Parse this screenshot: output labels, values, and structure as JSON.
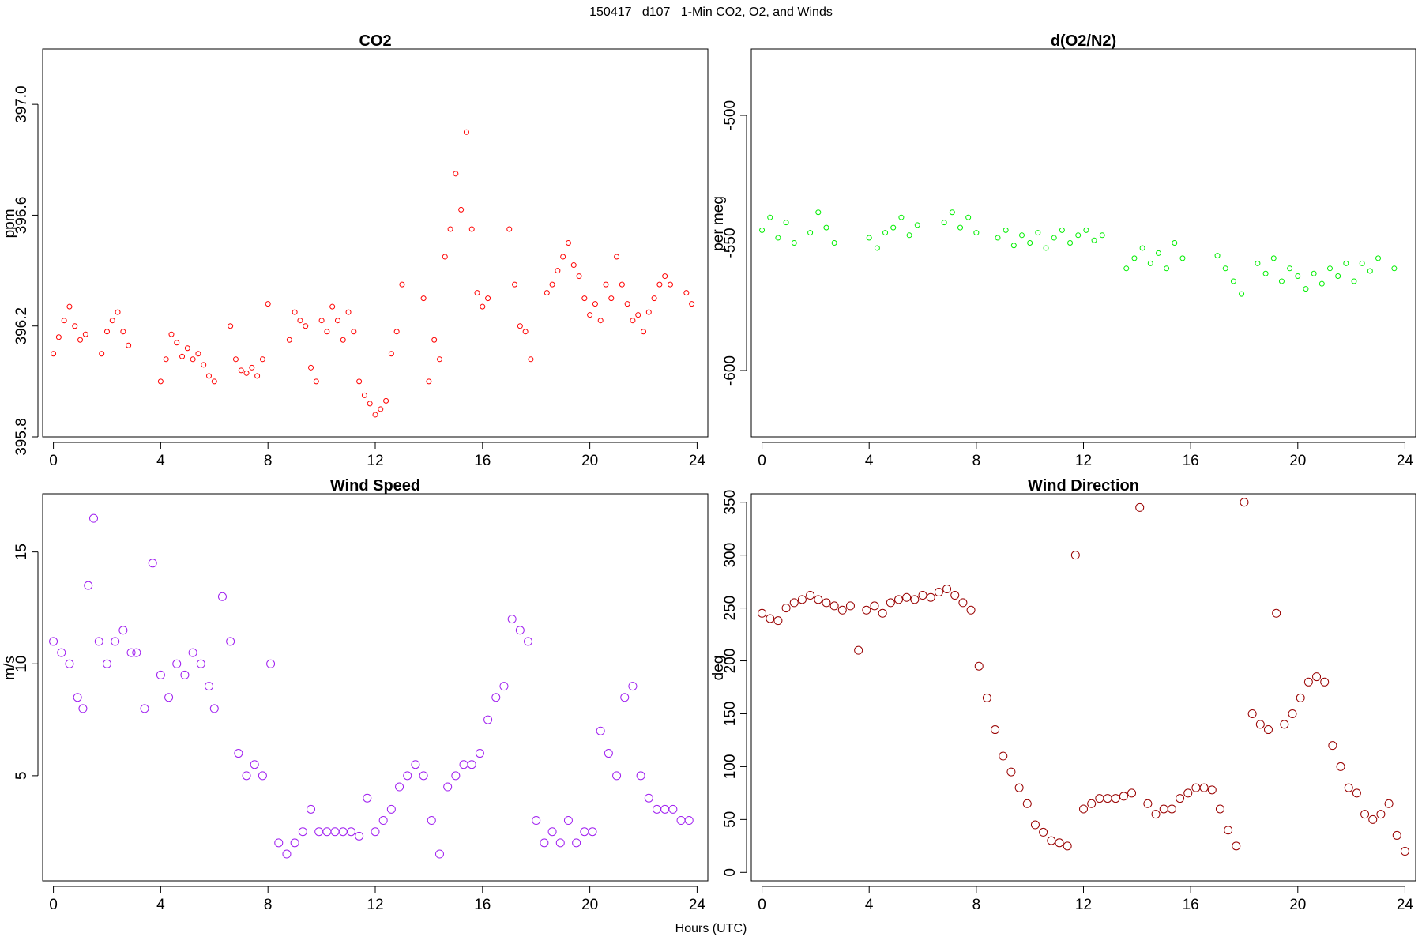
{
  "page": {
    "title": "150417   d107   1-Min CO2, O2, and Winds",
    "xlabel": "Hours (UTC)"
  },
  "chart_data": [
    {
      "type": "scatter",
      "title": "CO2",
      "ylabel": "ppm",
      "color": "#ff0000",
      "xlim": [
        -0.4,
        24.4
      ],
      "ylim": [
        395.8,
        397.2
      ],
      "xticks": [
        0,
        4,
        8,
        12,
        16,
        20,
        24
      ],
      "yticks": [
        395.8,
        396.2,
        396.6,
        397.0
      ],
      "ytick_labels": [
        "395.8",
        "396.2",
        "396.6",
        "397.0"
      ],
      "series": [
        {
          "x": [
            0.0,
            0.2,
            0.4,
            0.6,
            0.8,
            1.0,
            1.2,
            1.8,
            2.0,
            2.2,
            2.4,
            2.6,
            2.8,
            4.0,
            4.2,
            4.4,
            4.6,
            4.8,
            5.0,
            5.2,
            5.4,
            5.6,
            5.8,
            6.0,
            6.6,
            6.8,
            7.0,
            7.2,
            7.4,
            7.6,
            7.8,
            8.0,
            8.8,
            9.0,
            9.2,
            9.4,
            9.6,
            9.8,
            10.0,
            10.2,
            10.4,
            10.6,
            10.8,
            11.0,
            11.2,
            11.4,
            11.6,
            11.8,
            12.0,
            12.2,
            12.4,
            12.6,
            12.8,
            13.0,
            13.8,
            14.0,
            14.2,
            14.4,
            14.6,
            14.8,
            15.0,
            15.2,
            15.4,
            15.6,
            15.8,
            16.0,
            16.2,
            17.0,
            17.2,
            17.4,
            17.6,
            17.8,
            18.4,
            18.6,
            18.8,
            19.0,
            19.2,
            19.4,
            19.6,
            19.8,
            20.0,
            20.2,
            20.4,
            20.6,
            20.8,
            21.0,
            21.2,
            21.4,
            21.6,
            21.8,
            22.0,
            22.2,
            22.4,
            22.6,
            22.8,
            23.0,
            23.6,
            23.8
          ],
          "y": [
            396.1,
            396.16,
            396.22,
            396.27,
            396.2,
            396.15,
            396.17,
            396.1,
            396.18,
            396.22,
            396.25,
            396.18,
            396.13,
            396.0,
            396.08,
            396.17,
            396.14,
            396.09,
            396.12,
            396.08,
            396.1,
            396.06,
            396.02,
            396.0,
            396.2,
            396.08,
            396.04,
            396.03,
            396.05,
            396.02,
            396.08,
            396.28,
            396.15,
            396.25,
            396.22,
            396.2,
            396.05,
            396.0,
            396.22,
            396.18,
            396.27,
            396.22,
            396.15,
            396.25,
            396.18,
            396.0,
            395.95,
            395.92,
            395.88,
            395.9,
            395.93,
            396.1,
            396.18,
            396.35,
            396.3,
            396.0,
            396.15,
            396.08,
            396.45,
            396.55,
            396.75,
            396.62,
            396.9,
            396.55,
            396.32,
            396.27,
            396.3,
            396.55,
            396.35,
            396.2,
            396.18,
            396.08,
            396.32,
            396.35,
            396.4,
            396.45,
            396.5,
            396.42,
            396.38,
            396.3,
            396.24,
            396.28,
            396.22,
            396.35,
            396.3,
            396.45,
            396.35,
            396.28,
            396.22,
            396.24,
            396.18,
            396.25,
            396.3,
            396.35,
            396.38,
            396.35,
            396.32,
            396.28
          ]
        }
      ]
    },
    {
      "type": "scatter",
      "title": "d(O2/N2)",
      "ylabel": "per meg",
      "color": "#00ee00",
      "xlim": [
        -0.4,
        24.4
      ],
      "ylim": [
        -626,
        -474
      ],
      "xticks": [
        0,
        4,
        8,
        12,
        16,
        20,
        24
      ],
      "yticks": [
        -600,
        -550,
        -500
      ],
      "ytick_labels": [
        "-600",
        "-550",
        "-500"
      ],
      "series": [
        {
          "x": [
            0.0,
            0.3,
            0.6,
            0.9,
            1.2,
            1.8,
            2.1,
            2.4,
            2.7,
            4.0,
            4.3,
            4.6,
            4.9,
            5.2,
            5.5,
            5.8,
            6.8,
            7.1,
            7.4,
            7.7,
            8.0,
            8.8,
            9.1,
            9.4,
            9.7,
            10.0,
            10.3,
            10.6,
            10.9,
            11.2,
            11.5,
            11.8,
            12.1,
            12.4,
            12.7,
            13.6,
            13.9,
            14.2,
            14.5,
            14.8,
            15.1,
            15.4,
            15.7,
            17.0,
            17.3,
            17.6,
            17.9,
            18.5,
            18.8,
            19.1,
            19.4,
            19.7,
            20.0,
            20.3,
            20.6,
            20.9,
            21.2,
            21.5,
            21.8,
            22.1,
            22.4,
            22.7,
            23.0,
            23.6
          ],
          "y": [
            -545,
            -540,
            -548,
            -542,
            -550,
            -546,
            -538,
            -544,
            -550,
            -548,
            -552,
            -546,
            -544,
            -540,
            -547,
            -543,
            -542,
            -538,
            -544,
            -540,
            -546,
            -548,
            -545,
            -551,
            -547,
            -550,
            -546,
            -552,
            -548,
            -545,
            -550,
            -547,
            -545,
            -549,
            -547,
            -560,
            -556,
            -552,
            -558,
            -554,
            -560,
            -550,
            -556,
            -555,
            -560,
            -565,
            -570,
            -558,
            -562,
            -556,
            -565,
            -560,
            -563,
            -568,
            -562,
            -566,
            -560,
            -563,
            -558,
            -565,
            -558,
            -561,
            -556,
            -560
          ]
        }
      ]
    },
    {
      "type": "scatter",
      "title": "Wind Speed",
      "ylabel": "m/s",
      "color": "#a020f0",
      "xlim": [
        -0.4,
        24.4
      ],
      "ylim": [
        0.3,
        17.6
      ],
      "xticks": [
        0,
        4,
        8,
        12,
        16,
        20,
        24
      ],
      "yticks": [
        5,
        10,
        15
      ],
      "ytick_labels": [
        "5",
        "10",
        "15"
      ],
      "series": [
        {
          "x": [
            0.0,
            0.3,
            0.6,
            0.9,
            1.1,
            1.3,
            1.5,
            1.7,
            2.0,
            2.3,
            2.6,
            2.9,
            3.1,
            3.4,
            3.7,
            4.0,
            4.3,
            4.6,
            4.9,
            5.2,
            5.5,
            5.8,
            6.0,
            6.3,
            6.6,
            6.9,
            7.2,
            7.5,
            7.8,
            8.1,
            8.4,
            8.7,
            9.0,
            9.3,
            9.6,
            9.9,
            10.2,
            10.5,
            10.8,
            11.1,
            11.4,
            11.7,
            12.0,
            12.3,
            12.6,
            12.9,
            13.2,
            13.5,
            13.8,
            14.1,
            14.4,
            14.7,
            15.0,
            15.3,
            15.6,
            15.9,
            16.2,
            16.5,
            16.8,
            17.1,
            17.4,
            17.7,
            18.0,
            18.3,
            18.6,
            18.9,
            19.2,
            19.5,
            19.8,
            20.1,
            20.4,
            20.7,
            21.0,
            21.3,
            21.6,
            21.9,
            22.2,
            22.5,
            22.8,
            23.1,
            23.4,
            23.7
          ],
          "y": [
            11.0,
            10.5,
            10.0,
            8.5,
            8.0,
            13.5,
            16.5,
            11.0,
            10.0,
            11.0,
            11.5,
            10.5,
            10.5,
            8.0,
            14.5,
            9.5,
            8.5,
            10.0,
            9.5,
            10.5,
            10.0,
            9.0,
            8.0,
            13.0,
            11.0,
            6.0,
            5.0,
            5.5,
            5.0,
            10.0,
            2.0,
            1.5,
            2.0,
            2.5,
            3.5,
            2.5,
            2.5,
            2.5,
            2.5,
            2.5,
            2.3,
            4.0,
            2.5,
            3.0,
            3.5,
            4.5,
            5.0,
            5.5,
            5.0,
            3.0,
            1.5,
            4.5,
            5.0,
            5.5,
            5.5,
            6.0,
            7.5,
            8.5,
            9.0,
            12.0,
            11.5,
            11.0,
            3.0,
            2.0,
            2.5,
            2.0,
            3.0,
            2.0,
            2.5,
            2.5,
            7.0,
            6.0,
            5.0,
            8.5,
            9.0,
            5.0,
            4.0,
            3.5,
            3.5,
            3.5,
            3.0,
            3.0
          ]
        }
      ]
    },
    {
      "type": "scatter",
      "title": "Wind Direction",
      "ylabel": "deg",
      "color": "#990000",
      "xlim": [
        -0.4,
        24.4
      ],
      "ylim": [
        -8,
        358
      ],
      "xticks": [
        0,
        4,
        8,
        12,
        16,
        20,
        24
      ],
      "yticks": [
        0,
        50,
        100,
        150,
        200,
        250,
        300,
        350
      ],
      "ytick_labels": [
        "0",
        "50",
        "100",
        "150",
        "200",
        "250",
        "300",
        "350"
      ],
      "series": [
        {
          "x": [
            0.0,
            0.3,
            0.6,
            0.9,
            1.2,
            1.5,
            1.8,
            2.1,
            2.4,
            2.7,
            3.0,
            3.3,
            3.6,
            3.9,
            4.2,
            4.5,
            4.8,
            5.1,
            5.4,
            5.7,
            6.0,
            6.3,
            6.6,
            6.9,
            7.2,
            7.5,
            7.8,
            8.1,
            8.4,
            8.7,
            9.0,
            9.3,
            9.6,
            9.9,
            10.2,
            10.5,
            10.8,
            11.1,
            11.4,
            11.7,
            12.0,
            12.3,
            12.6,
            12.9,
            13.2,
            13.5,
            13.8,
            14.1,
            14.4,
            14.7,
            15.0,
            15.3,
            15.6,
            15.9,
            16.2,
            16.5,
            16.8,
            17.1,
            17.4,
            17.7,
            18.0,
            18.3,
            18.6,
            18.9,
            19.2,
            19.5,
            19.8,
            20.1,
            20.4,
            20.7,
            21.0,
            21.3,
            21.6,
            21.9,
            22.2,
            22.5,
            22.8,
            23.1,
            23.4,
            23.7,
            24.0
          ],
          "y": [
            245,
            240,
            238,
            250,
            255,
            258,
            262,
            258,
            255,
            252,
            248,
            252,
            210,
            248,
            252,
            245,
            255,
            258,
            260,
            258,
            262,
            260,
            265,
            268,
            262,
            255,
            248,
            195,
            165,
            135,
            110,
            95,
            80,
            65,
            45,
            38,
            30,
            28,
            25,
            300,
            60,
            65,
            70,
            70,
            70,
            72,
            75,
            345,
            65,
            55,
            60,
            60,
            70,
            75,
            80,
            80,
            78,
            60,
            40,
            25,
            350,
            150,
            140,
            135,
            245,
            140,
            150,
            165,
            180,
            185,
            180,
            120,
            100,
            80,
            75,
            55,
            50,
            55,
            65,
            35,
            20
          ]
        }
      ]
    }
  ]
}
